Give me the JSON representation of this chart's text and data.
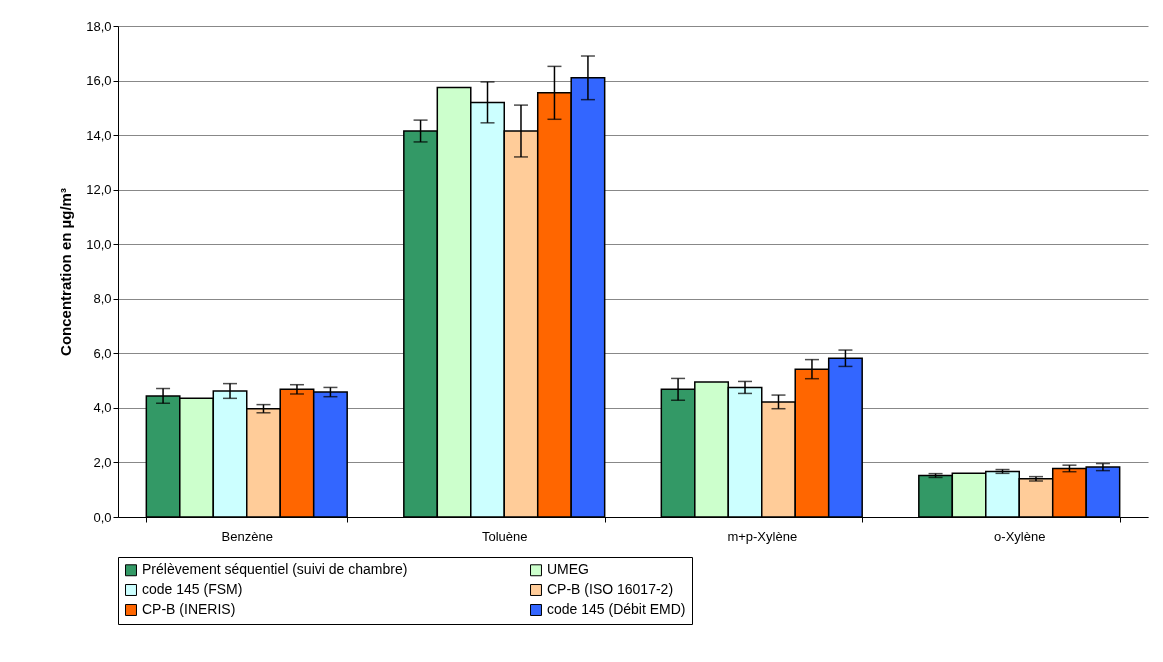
{
  "chart_data": {
    "type": "bar",
    "ylabel": "Concentration en µg/m³",
    "categories": [
      "Benzène",
      "Toluène",
      "m+p-Xylène",
      "o-Xylène"
    ],
    "series": [
      {
        "name": "Prélèvement séquentiel (suivi de chambre)",
        "color": "#339966",
        "values": [
          4.44,
          14.15,
          4.68,
          1.52
        ],
        "errors": [
          0.27,
          0.4,
          0.4,
          0.07
        ]
      },
      {
        "name": "UMEG",
        "color": "#ccffcc",
        "values": [
          4.35,
          15.75,
          4.95,
          1.6
        ]
      },
      {
        "name": "code 145 (FSM)",
        "color": "#ccffff",
        "values": [
          4.62,
          15.2,
          4.75,
          1.67
        ],
        "errors": [
          0.27,
          0.75,
          0.22,
          0.07
        ]
      },
      {
        "name": "CP-B (ISO 16017-2)",
        "color": "#ffcc99",
        "values": [
          3.97,
          14.15,
          4.22,
          1.4
        ],
        "errors": [
          0.15,
          0.95,
          0.25,
          0.08
        ]
      },
      {
        "name": "CP-B (INERIS)",
        "color": "#ff6600",
        "values": [
          4.68,
          15.55,
          5.42,
          1.78
        ],
        "errors": [
          0.17,
          0.97,
          0.35,
          0.12
        ]
      },
      {
        "name": "code 145 (Débit EMD)",
        "color": "#3366ff",
        "values": [
          4.58,
          16.1,
          5.82,
          1.83
        ],
        "errors": [
          0.17,
          0.8,
          0.3,
          0.13
        ]
      }
    ],
    "ylim": [
      0,
      18
    ],
    "yticks": [
      {
        "value": 0,
        "label": "0,0"
      },
      {
        "value": 2,
        "label": "2,0"
      },
      {
        "value": 4,
        "label": "4,0"
      },
      {
        "value": 6,
        "label": "6,0"
      },
      {
        "value": 8,
        "label": "8,0"
      },
      {
        "value": 10,
        "label": "10,0"
      },
      {
        "value": 12,
        "label": "12,0"
      },
      {
        "value": 14,
        "label": "14,0"
      },
      {
        "value": 16,
        "label": "16,0"
      },
      {
        "value": 18,
        "label": "18,0"
      }
    ],
    "grid": "y",
    "legend": "bottom"
  }
}
